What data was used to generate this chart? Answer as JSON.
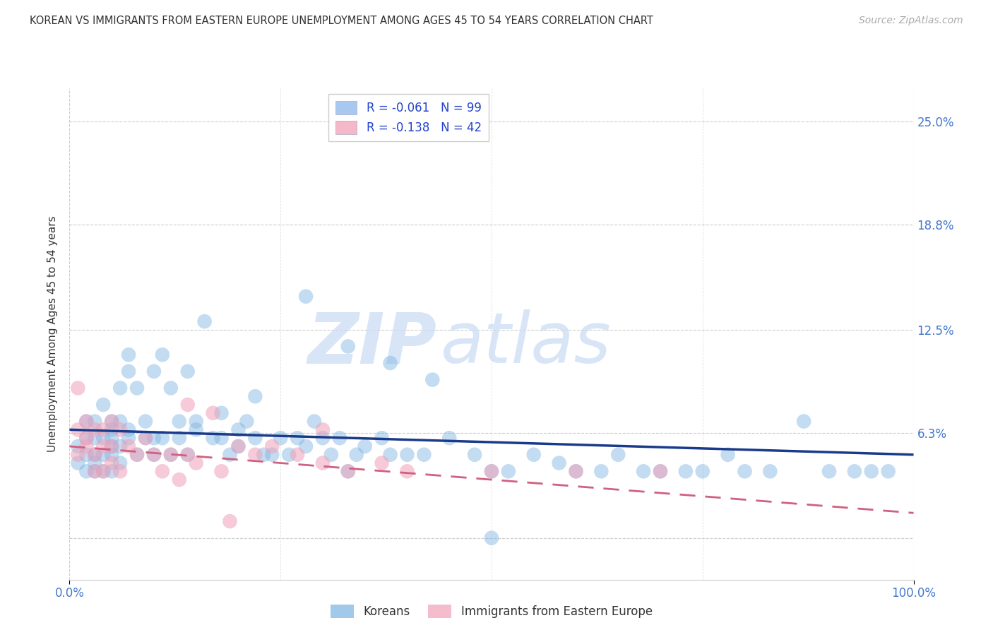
{
  "title": "KOREAN VS IMMIGRANTS FROM EASTERN EUROPE UNEMPLOYMENT AMONG AGES 45 TO 54 YEARS CORRELATION CHART",
  "source": "Source: ZipAtlas.com",
  "ylabel": "Unemployment Among Ages 45 to 54 years",
  "xlim": [
    0.0,
    1.0
  ],
  "ylim": [
    -0.025,
    0.27
  ],
  "yticks": [
    0.0,
    0.063,
    0.125,
    0.188,
    0.25
  ],
  "ytick_labels": [
    "",
    "6.3%",
    "12.5%",
    "18.8%",
    "25.0%"
  ],
  "xtick_vals": [
    0.0,
    1.0
  ],
  "xtick_labels": [
    "0.0%",
    "100.0%"
  ],
  "legend_entries": [
    {
      "label": "R = -0.061   N = 99",
      "color": "#a8c8f0"
    },
    {
      "label": "R = -0.138   N = 42",
      "color": "#f4b8c8"
    }
  ],
  "legend_labels_bottom": [
    "Koreans",
    "Immigrants from Eastern Europe"
  ],
  "korean_color": "#7ab3e0",
  "eastern_europe_color": "#f0a0b8",
  "korean_line_color": "#1a3a8a",
  "eastern_europe_line_color": "#d06080",
  "watermark_zip": "ZIP",
  "watermark_atlas": "atlas",
  "background_color": "#ffffff",
  "grid_color": "#cccccc",
  "title_color": "#333333",
  "tick_color": "#4477cc",
  "korean_R": -0.061,
  "korean_N": 99,
  "eastern_R": -0.138,
  "eastern_N": 42,
  "korean_line_x0": 0.0,
  "korean_line_x1": 1.0,
  "korean_line_y0": 0.065,
  "korean_line_y1": 0.05,
  "eastern_line_x0": 0.0,
  "eastern_line_x1": 1.0,
  "eastern_line_y0": 0.055,
  "eastern_line_y1": 0.015,
  "korean_x": [
    0.01,
    0.01,
    0.02,
    0.02,
    0.02,
    0.02,
    0.03,
    0.03,
    0.03,
    0.03,
    0.03,
    0.04,
    0.04,
    0.04,
    0.04,
    0.05,
    0.05,
    0.05,
    0.05,
    0.05,
    0.05,
    0.06,
    0.06,
    0.06,
    0.06,
    0.07,
    0.07,
    0.07,
    0.07,
    0.08,
    0.08,
    0.09,
    0.09,
    0.1,
    0.1,
    0.1,
    0.11,
    0.11,
    0.12,
    0.12,
    0.13,
    0.13,
    0.14,
    0.14,
    0.15,
    0.15,
    0.16,
    0.17,
    0.18,
    0.19,
    0.2,
    0.2,
    0.21,
    0.22,
    0.23,
    0.24,
    0.25,
    0.26,
    0.27,
    0.28,
    0.29,
    0.3,
    0.31,
    0.32,
    0.33,
    0.34,
    0.35,
    0.37,
    0.38,
    0.4,
    0.42,
    0.45,
    0.48,
    0.5,
    0.52,
    0.55,
    0.58,
    0.6,
    0.63,
    0.65,
    0.68,
    0.7,
    0.73,
    0.75,
    0.78,
    0.8,
    0.83,
    0.87,
    0.9,
    0.93,
    0.95,
    0.97,
    0.28,
    0.33,
    0.38,
    0.43,
    0.22,
    0.18,
    0.5
  ],
  "korean_y": [
    0.055,
    0.045,
    0.06,
    0.04,
    0.07,
    0.05,
    0.06,
    0.045,
    0.04,
    0.07,
    0.05,
    0.06,
    0.04,
    0.08,
    0.05,
    0.065,
    0.055,
    0.04,
    0.07,
    0.05,
    0.06,
    0.045,
    0.07,
    0.055,
    0.09,
    0.065,
    0.1,
    0.06,
    0.11,
    0.09,
    0.05,
    0.06,
    0.07,
    0.1,
    0.06,
    0.05,
    0.11,
    0.06,
    0.09,
    0.05,
    0.06,
    0.07,
    0.05,
    0.1,
    0.065,
    0.07,
    0.13,
    0.06,
    0.06,
    0.05,
    0.055,
    0.065,
    0.07,
    0.06,
    0.05,
    0.05,
    0.06,
    0.05,
    0.06,
    0.055,
    0.07,
    0.06,
    0.05,
    0.06,
    0.04,
    0.05,
    0.055,
    0.06,
    0.05,
    0.05,
    0.05,
    0.06,
    0.05,
    0.04,
    0.04,
    0.05,
    0.045,
    0.04,
    0.04,
    0.05,
    0.04,
    0.04,
    0.04,
    0.04,
    0.05,
    0.04,
    0.04,
    0.07,
    0.04,
    0.04,
    0.04,
    0.04,
    0.145,
    0.115,
    0.105,
    0.095,
    0.085,
    0.075,
    0.0
  ],
  "eastern_x": [
    0.01,
    0.01,
    0.01,
    0.02,
    0.02,
    0.02,
    0.03,
    0.03,
    0.03,
    0.04,
    0.04,
    0.04,
    0.05,
    0.05,
    0.05,
    0.06,
    0.06,
    0.07,
    0.08,
    0.09,
    0.1,
    0.11,
    0.12,
    0.13,
    0.14,
    0.15,
    0.17,
    0.18,
    0.19,
    0.2,
    0.22,
    0.24,
    0.27,
    0.3,
    0.33,
    0.37,
    0.4,
    0.5,
    0.6,
    0.7,
    0.14,
    0.3
  ],
  "eastern_y": [
    0.05,
    0.09,
    0.065,
    0.07,
    0.06,
    0.055,
    0.065,
    0.05,
    0.04,
    0.065,
    0.055,
    0.04,
    0.07,
    0.055,
    0.045,
    0.065,
    0.04,
    0.055,
    0.05,
    0.06,
    0.05,
    0.04,
    0.05,
    0.035,
    0.05,
    0.045,
    0.075,
    0.04,
    0.01,
    0.055,
    0.05,
    0.055,
    0.05,
    0.045,
    0.04,
    0.045,
    0.04,
    0.04,
    0.04,
    0.04,
    0.08,
    0.065
  ]
}
